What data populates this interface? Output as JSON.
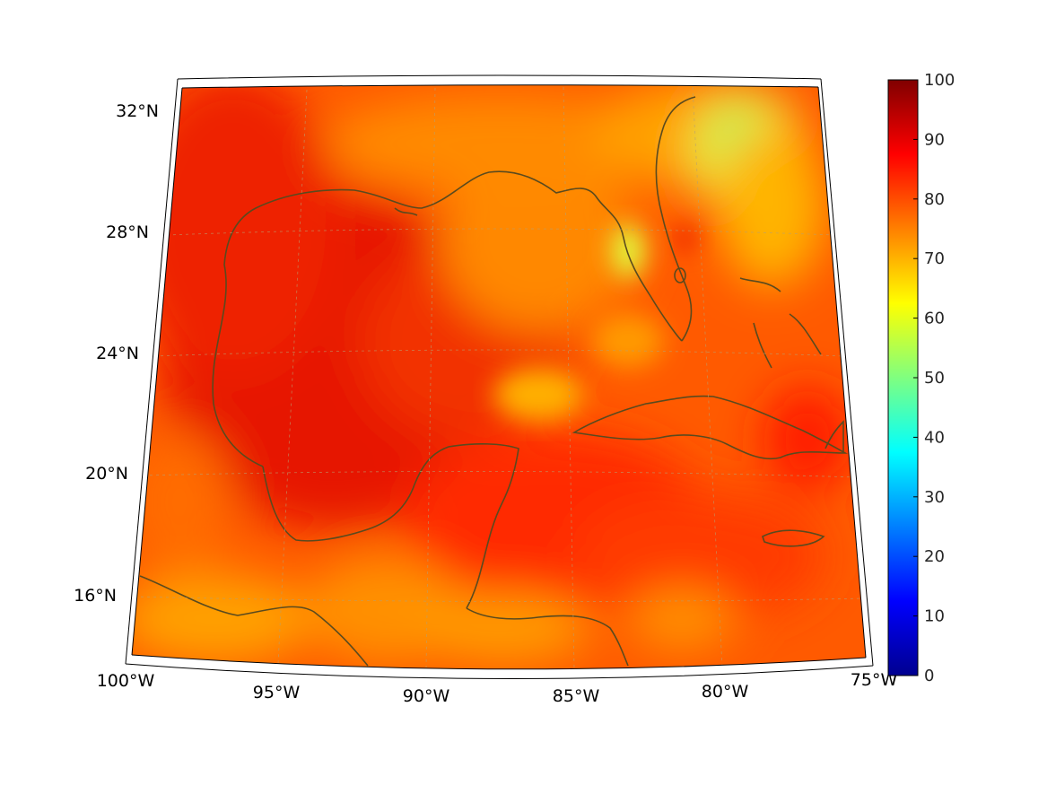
{
  "map": {
    "type": "projected-field-map",
    "projection": "conic",
    "lon_range": [
      -100,
      -75
    ],
    "lat_range": [
      14,
      33
    ],
    "lon_ticks": [
      {
        "value": -100,
        "label": "100°W"
      },
      {
        "value": -95,
        "label": "95°W"
      },
      {
        "value": -90,
        "label": "90°W"
      },
      {
        "value": -85,
        "label": "85°W"
      },
      {
        "value": -80,
        "label": "80°W"
      },
      {
        "value": -75,
        "label": "75°W"
      }
    ],
    "lat_ticks": [
      {
        "value": 16,
        "label": "16°N"
      },
      {
        "value": 20,
        "label": "20°N"
      },
      {
        "value": 24,
        "label": "24°N"
      },
      {
        "value": 28,
        "label": "28°N"
      },
      {
        "value": 32,
        "label": "32°N"
      }
    ],
    "grid": true,
    "coastline_color": "#5a4a1e",
    "colormap": "jet"
  },
  "colorbar": {
    "min": 0,
    "max": 100,
    "ticks": [
      "0",
      "10",
      "20",
      "30",
      "40",
      "50",
      "60",
      "70",
      "80",
      "90",
      "100"
    ]
  }
}
